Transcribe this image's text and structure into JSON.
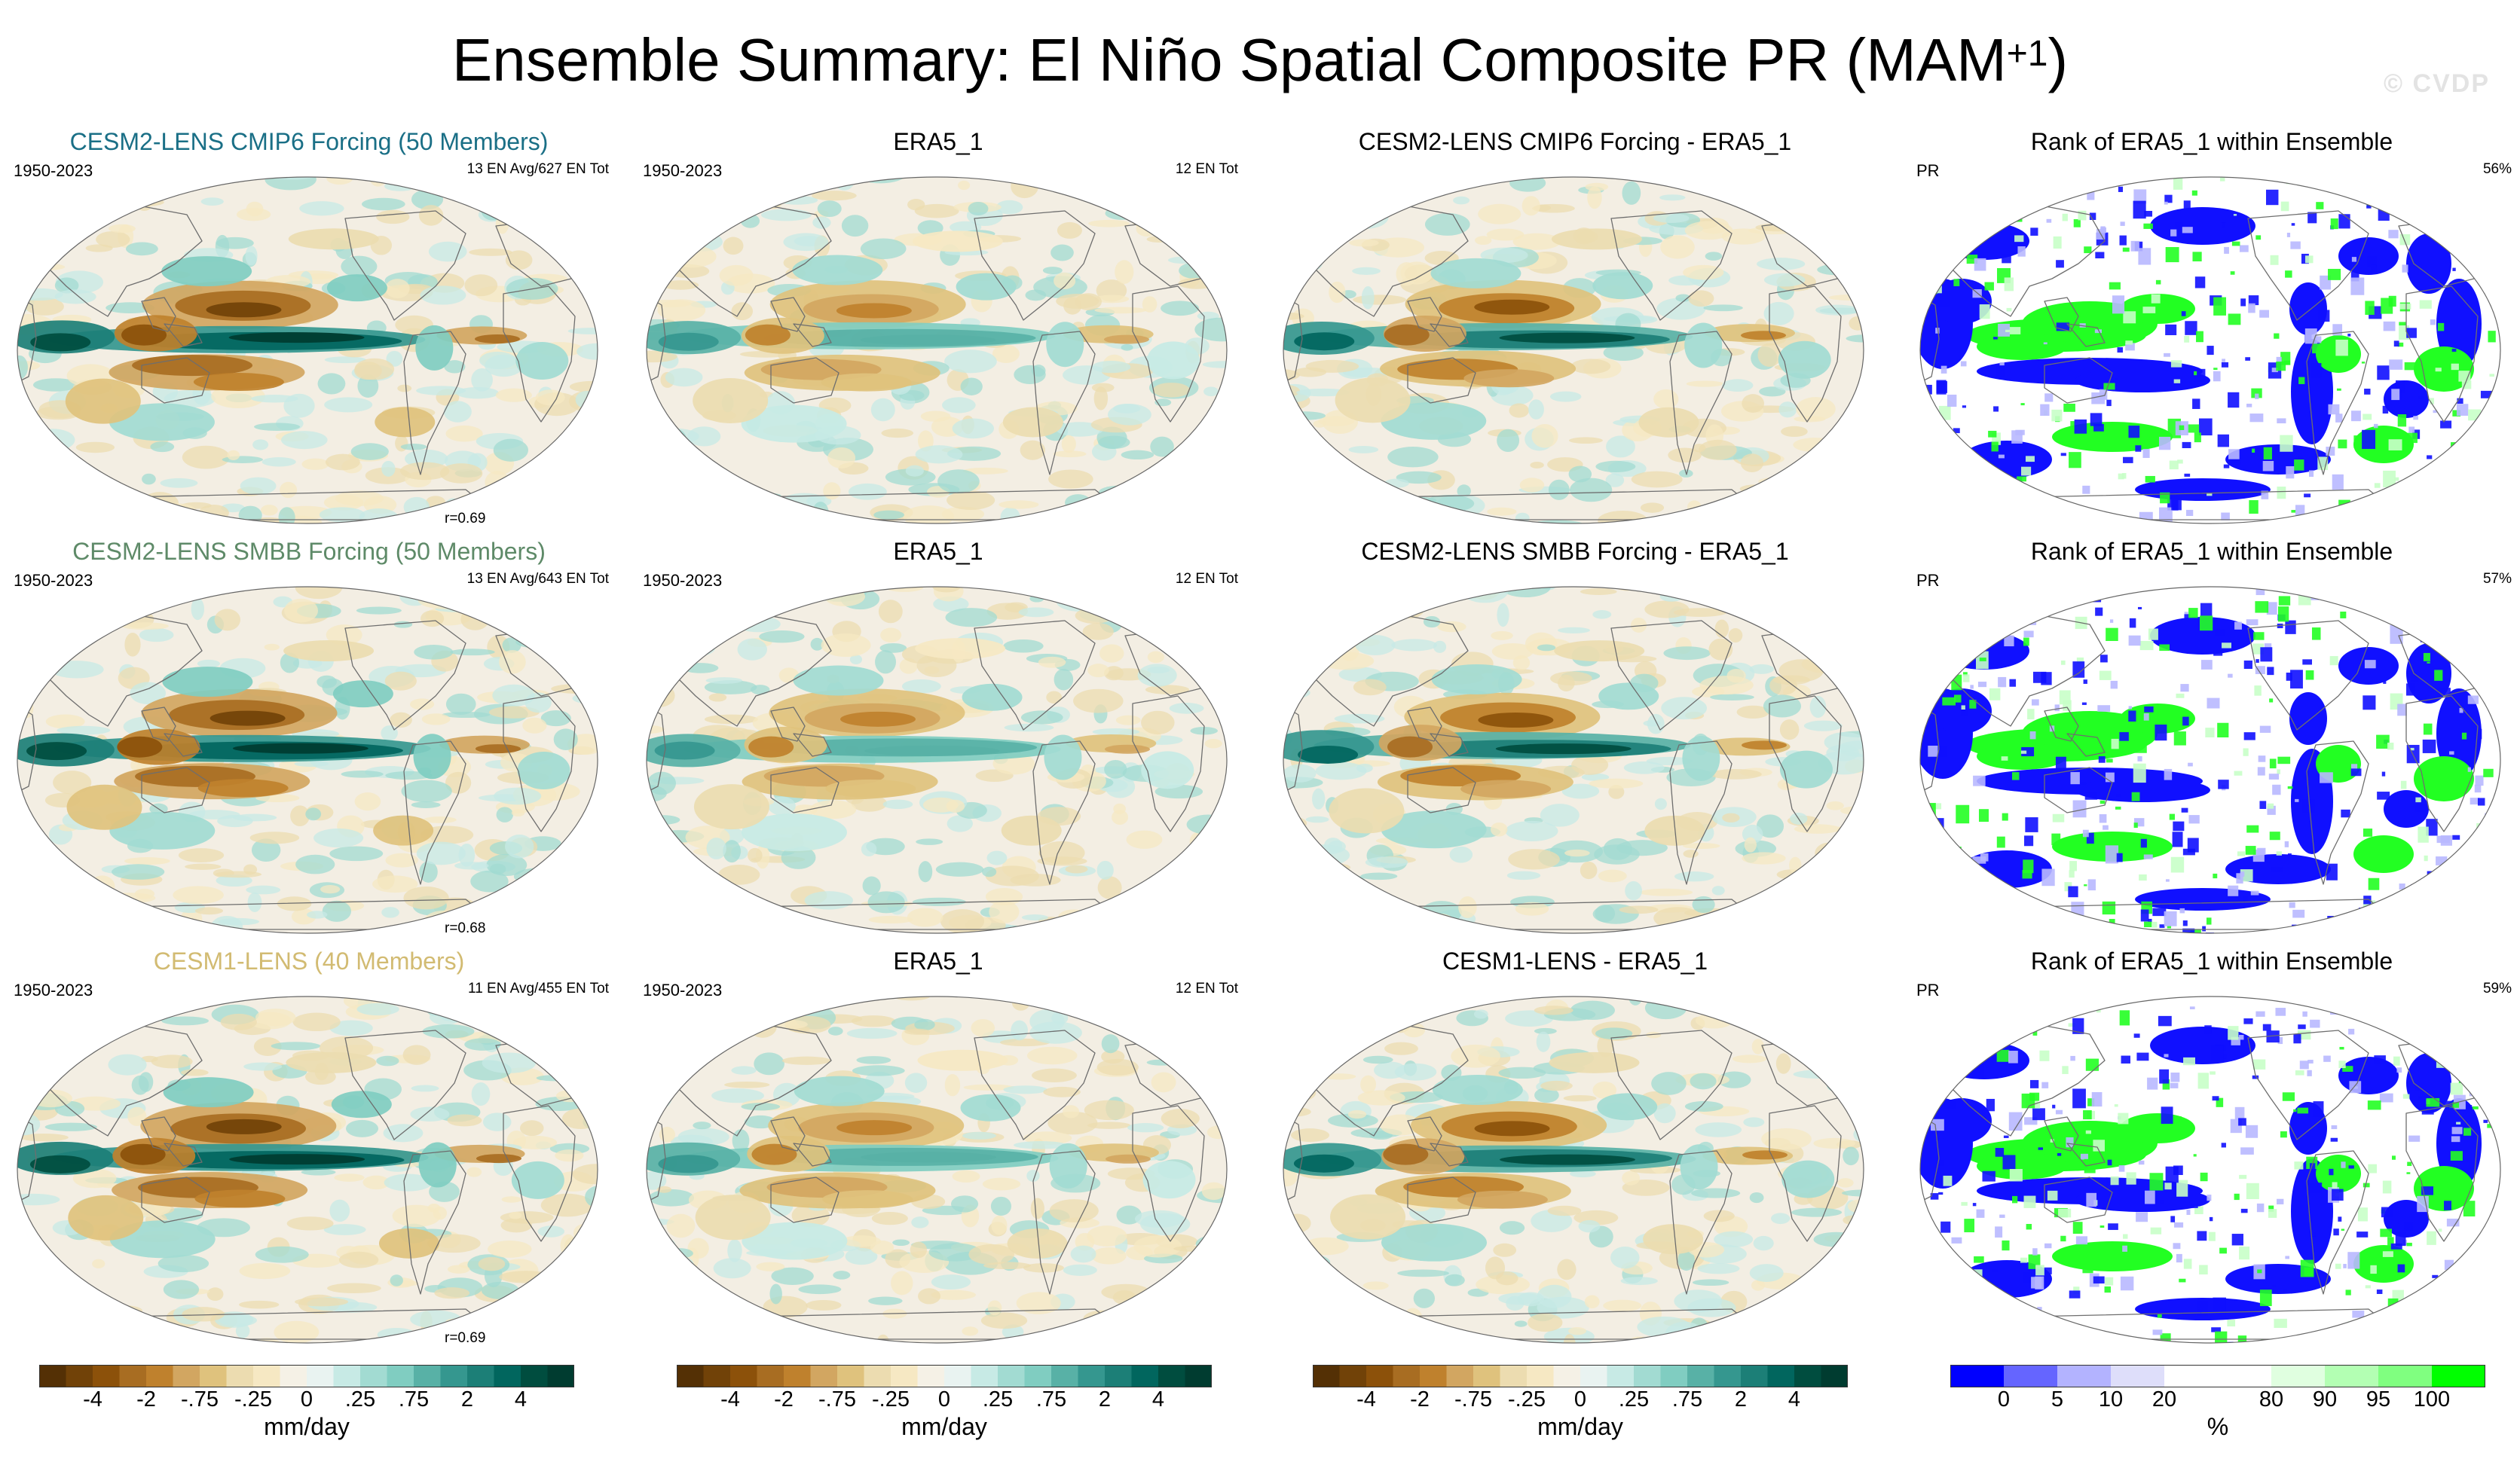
{
  "title": "Ensemble Summary: El Niño Spatial Composite PR (MAM",
  "title_superscript": "+1",
  "title_close": ")",
  "watermark": "© CVDP",
  "rows": [
    {
      "model": {
        "title": "CESM2-LENS CMIP6 Forcing (50 Members)",
        "title_color": "#1a6f86",
        "period": "1950-2023",
        "info": "13 EN Avg/627 EN Tot",
        "corr": "r=0.69"
      },
      "obs": {
        "title": "ERA5_1",
        "period": "1950-2023",
        "info": "12 EN Tot"
      },
      "diff": {
        "title": "CESM2-LENS CMIP6 Forcing - ERA5_1"
      },
      "rank": {
        "title": "Rank of ERA5_1 within Ensemble",
        "var": "PR",
        "pct": "56%"
      }
    },
    {
      "model": {
        "title": "CESM2-LENS SMBB Forcing (50 Members)",
        "title_color": "#5e8a68",
        "period": "1950-2023",
        "info": "13 EN Avg/643 EN Tot",
        "corr": "r=0.68"
      },
      "obs": {
        "title": "ERA5_1",
        "period": "1950-2023",
        "info": "12 EN Tot"
      },
      "diff": {
        "title": "CESM2-LENS SMBB Forcing - ERA5_1"
      },
      "rank": {
        "title": "Rank of ERA5_1 within Ensemble",
        "var": "PR",
        "pct": "57%"
      }
    },
    {
      "model": {
        "title": "CESM1-LENS (40 Members)",
        "title_color": "#d2bb72",
        "period": "1950-2023",
        "info": "11 EN Avg/455 EN Tot",
        "corr": "r=0.69"
      },
      "obs": {
        "title": "ERA5_1",
        "period": "1950-2023",
        "info": "12 EN Tot"
      },
      "diff": {
        "title": "CESM1-LENS - ERA5_1"
      },
      "rank": {
        "title": "Rank of ERA5_1 within Ensemble",
        "var": "PR",
        "pct": "59%"
      }
    }
  ],
  "colorbars": {
    "pr": {
      "colors": [
        "#543005",
        "#714208",
        "#8c510a",
        "#a86d22",
        "#bf812d",
        "#d2a661",
        "#dfc27d",
        "#ecdcb0",
        "#f6e8c3",
        "#f5f1e6",
        "#e9f3f1",
        "#c7eae5",
        "#a2dbd2",
        "#80cdc1",
        "#58b1a6",
        "#35978f",
        "#1c7f77",
        "#01665e",
        "#004d3f",
        "#003c30"
      ],
      "ticks": [
        "-4",
        "-2",
        "-.75",
        "-.25",
        "0",
        ".25",
        ".75",
        "2",
        "4"
      ],
      "unit": "mm/day"
    },
    "rank": {
      "colors": [
        "#0000ff",
        "#6565ff",
        "#b3b3ff",
        "#dedefa",
        "#ffffff",
        "#ffffff",
        "#e0ffe0",
        "#b3ffb3",
        "#80ff80",
        "#00ff00"
      ],
      "ticks": [
        "0",
        "5",
        "10",
        "20",
        "80",
        "90",
        "95",
        "100"
      ],
      "unit": "%"
    }
  },
  "chart_data": {
    "type": "heatmap",
    "description_variable": "PR",
    "units": "mm/day",
    "season": "MAM+1",
    "period": "1950-2023",
    "contour_levels": [
      -4,
      -2,
      -0.75,
      -0.25,
      0,
      0.25,
      0.75,
      2,
      4
    ],
    "rank_levels_percent": [
      0,
      5,
      10,
      20,
      80,
      90,
      95,
      100
    ],
    "pattern_correlations": [
      {
        "name": "CESM2-LENS CMIP6 Forcing (50 Members)",
        "r": 0.69
      },
      {
        "name": "CESM2-LENS SMBB Forcing (50 Members)",
        "r": 0.68
      },
      {
        "name": "CESM1-LENS (40 Members)",
        "r": 0.69
      }
    ],
    "el_nino_counts": [
      {
        "name": "CESM2-LENS CMIP6 Forcing",
        "avg": 13,
        "total": 627
      },
      {
        "name": "CESM2-LENS SMBB Forcing",
        "avg": 13,
        "total": 643
      },
      {
        "name": "CESM1-LENS",
        "avg": 11,
        "total": 455
      },
      {
        "name": "ERA5_1",
        "total": 12
      }
    ],
    "rank_percent_summary": [
      56,
      57,
      59
    ]
  }
}
